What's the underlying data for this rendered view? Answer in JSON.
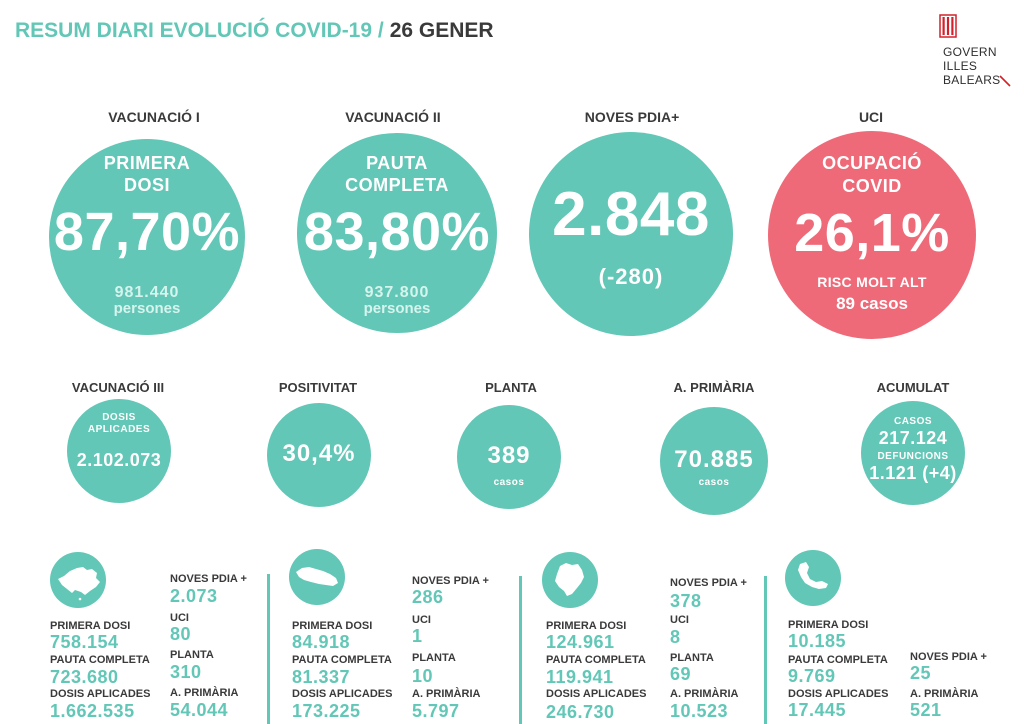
{
  "header": {
    "title": "RESUM DIARI EVOLUCIÓ COVID-19 /",
    "date": "26 GENER"
  },
  "logo": {
    "icon": "balearic-shield-icon",
    "lines": [
      "GOVERN",
      "ILLES",
      "BALEARS"
    ]
  },
  "colors": {
    "teal": "#62c7b6",
    "red": "#ef6a78",
    "ink": "#3a3a3a",
    "mint": "#d6f4ee",
    "logo_red": "#d4202a"
  },
  "main": {
    "vaccination_1": {
      "heading": "VACUNACIÓ I",
      "label": [
        "PRIMERA",
        "DOSI"
      ],
      "value": "87,70%",
      "count": "981.440",
      "unit": "persones"
    },
    "vaccination_2": {
      "heading": "VACUNACIÓ II",
      "label": [
        "PAUTA",
        "COMPLETA"
      ],
      "value": "83,80%",
      "count": "937.800",
      "unit": "persones"
    },
    "new_pdia": {
      "heading": "NOVES PDIA+",
      "value": "2.848",
      "change": "(-280)"
    },
    "icu": {
      "heading": "UCI",
      "label": [
        "OCUPACIÓ",
        "COVID"
      ],
      "value": "26,1%",
      "risk": "RISC MOLT ALT",
      "cases": "89 casos"
    }
  },
  "secondary": {
    "vaccination_3": {
      "heading": "VACUNACIÓ III",
      "label": [
        "DOSIS",
        "APLICADES"
      ],
      "value": "2.102.073"
    },
    "positivity": {
      "heading": "POSITIVITAT",
      "value": "30,4%"
    },
    "ward": {
      "heading": "PLANTA",
      "value": "389",
      "unit": "casos"
    },
    "primary_care": {
      "heading": "A. PRIMÀRIA",
      "value": "70.885",
      "unit": "casos"
    },
    "cumulative": {
      "heading": "ACUMULAT",
      "cases_label": "CASOS",
      "cases": "217.124",
      "deaths_label": "DEFUNCIONS",
      "deaths": "1.121 (+4)"
    }
  },
  "islands": [
    {
      "icon": "mallorca-map-icon",
      "vaccination": [
        {
          "label": "PRIMERA DOSI",
          "value": "758.154"
        },
        {
          "label": "PAUTA COMPLETA",
          "value": "723.680"
        },
        {
          "label": "DOSIS APLICADES",
          "value": "1.662.535"
        }
      ],
      "indicators": [
        {
          "label": "NOVES PDIA +",
          "value": "2.073"
        },
        {
          "label": "UCI",
          "value": "80"
        },
        {
          "label": "PLANTA",
          "value": "310"
        },
        {
          "label": "A. PRIMÀRIA",
          "value": "54.044"
        }
      ]
    },
    {
      "icon": "menorca-map-icon",
      "vaccination": [
        {
          "label": "PRIMERA DOSI",
          "value": "84.918"
        },
        {
          "label": "PAUTA COMPLETA",
          "value": "81.337"
        },
        {
          "label": "DOSIS APLICADES",
          "value": "173.225"
        }
      ],
      "indicators": [
        {
          "label": "NOVES PDIA +",
          "value": "286"
        },
        {
          "label": "UCI",
          "value": "1"
        },
        {
          "label": "PLANTA",
          "value": "10"
        },
        {
          "label": "A. PRIMÀRIA",
          "value": "5.797"
        }
      ]
    },
    {
      "icon": "eivissa-map-icon",
      "vaccination": [
        {
          "label": "PRIMERA DOSI",
          "value": "124.961"
        },
        {
          "label": "PAUTA COMPLETA",
          "value": "119.941"
        },
        {
          "label": "DOSIS APLICADES",
          "value": "246.730"
        }
      ],
      "indicators": [
        {
          "label": "NOVES PDIA +",
          "value": "378"
        },
        {
          "label": "UCI",
          "value": "8"
        },
        {
          "label": "PLANTA",
          "value": "69"
        },
        {
          "label": "A. PRIMÀRIA",
          "value": "10.523"
        }
      ]
    },
    {
      "icon": "formentera-map-icon",
      "vaccination": [
        {
          "label": "PRIMERA DOSI",
          "value": "10.185"
        },
        {
          "label": "PAUTA COMPLETA",
          "value": "9.769"
        },
        {
          "label": "DOSIS APLICADES",
          "value": "17.445"
        }
      ],
      "indicators": [
        {
          "label": "NOVES PDIA +",
          "value": "25"
        },
        {
          "label": "A. PRIMÀRIA",
          "value": "521"
        }
      ]
    }
  ]
}
